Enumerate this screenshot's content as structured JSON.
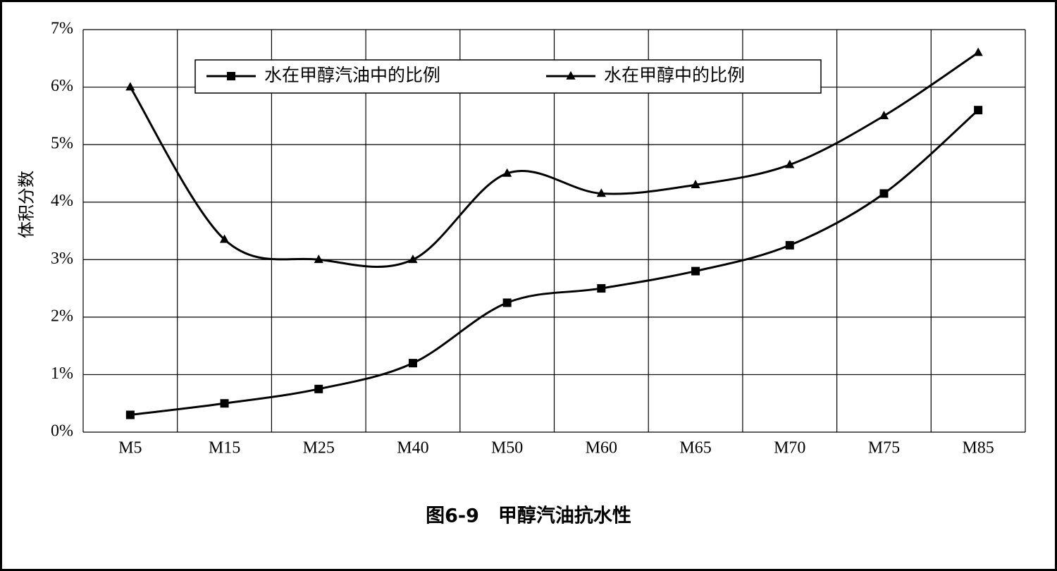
{
  "chart_data": {
    "type": "line",
    "title": "图6-9　甲醇汽油抗水性",
    "y_label": "体积分数",
    "categories": [
      "M5",
      "M15",
      "M25",
      "M40",
      "M50",
      "M60",
      "M65",
      "M70",
      "M75",
      "M85"
    ],
    "series": [
      {
        "name": "水在甲醇汽油中的比例",
        "color": "#000000",
        "marker": "square",
        "values": [
          0.3,
          0.5,
          0.75,
          1.2,
          2.25,
          2.5,
          2.8,
          3.25,
          4.15,
          5.6
        ]
      },
      {
        "name": "水在甲醇中的比例",
        "color": "#000000",
        "marker": "triangle",
        "values": [
          6.0,
          3.35,
          3.0,
          3.0,
          4.5,
          4.15,
          4.3,
          4.65,
          5.5,
          6.6
        ]
      }
    ],
    "ylim": [
      0,
      7
    ],
    "yticks": [
      {
        "value": 0,
        "label": "0%"
      },
      {
        "value": 1,
        "label": "1%"
      },
      {
        "value": 2,
        "label": "2%"
      },
      {
        "value": 3,
        "label": "3%"
      },
      {
        "value": 4,
        "label": "4%"
      },
      {
        "value": 5,
        "label": "5%"
      },
      {
        "value": 6,
        "label": "6%"
      },
      {
        "value": 7,
        "label": "7%"
      }
    ],
    "grid": true,
    "smooth": true,
    "legend": "top"
  }
}
